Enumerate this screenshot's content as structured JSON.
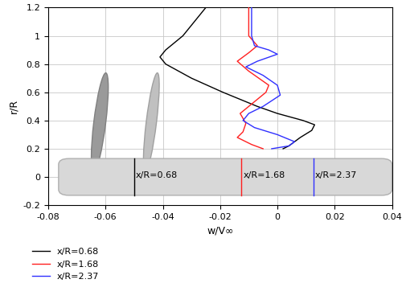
{
  "chart_data": {
    "type": "line",
    "xlabel": "w/V∞",
    "ylabel": "r/R",
    "xlim": [
      -0.08,
      0.04
    ],
    "xticks": [
      -0.08,
      -0.06,
      -0.04,
      -0.02,
      0,
      0.02,
      0.04
    ],
    "ylim": [
      -0.2,
      1.2
    ],
    "yticks": [
      -0.2,
      0,
      0.2,
      0.4,
      0.6,
      0.8,
      1,
      1.2
    ],
    "grid": true,
    "legend": "lower left",
    "series": [
      {
        "name": "x/R=0.68",
        "color": "#000000",
        "x": [
          -0.025,
          -0.029,
          -0.033,
          -0.039,
          -0.041,
          -0.039,
          -0.03,
          -0.019,
          -0.007,
          0.0,
          0.009,
          0.013,
          0.012,
          0.008,
          0.004,
          0.002
        ],
        "y": [
          1.2,
          1.1,
          1.0,
          0.9,
          0.85,
          0.8,
          0.7,
          0.6,
          0.5,
          0.45,
          0.4,
          0.37,
          0.33,
          0.28,
          0.22,
          0.2
        ]
      },
      {
        "name": "x/R=1.68",
        "color": "#ff2020",
        "x": [
          -0.01,
          -0.01,
          -0.007,
          -0.01,
          -0.014,
          -0.01,
          -0.003,
          -0.004,
          -0.01,
          -0.013,
          -0.011,
          -0.012,
          -0.014,
          -0.009,
          -0.005
        ],
        "y": [
          1.2,
          1.0,
          0.93,
          0.88,
          0.82,
          0.75,
          0.65,
          0.6,
          0.5,
          0.45,
          0.38,
          0.32,
          0.28,
          0.23,
          0.2
        ]
      },
      {
        "name": "x/R=2.37",
        "color": "#3030ff",
        "x": [
          -0.009,
          -0.009,
          -0.008,
          -0.003,
          0.0,
          -0.007,
          -0.011,
          -0.005,
          0.0,
          0.001,
          -0.005,
          -0.01,
          -0.012,
          -0.008,
          0.0,
          0.006,
          0.004,
          -0.002
        ],
        "y": [
          1.2,
          1.0,
          0.93,
          0.9,
          0.87,
          0.82,
          0.78,
          0.72,
          0.65,
          0.58,
          0.5,
          0.45,
          0.4,
          0.35,
          0.3,
          0.25,
          0.22,
          0.2
        ]
      }
    ]
  }
}
